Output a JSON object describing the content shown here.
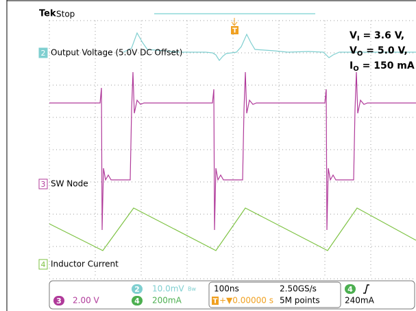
{
  "header": {
    "brand": "Tek",
    "status": "Stop",
    "trigger_marker": "T"
  },
  "annotations": [
    {
      "symbol": "V",
      "subscript": "I",
      "text": " = 3.6 V,"
    },
    {
      "symbol": "V",
      "subscript": "O",
      "text": " = 5.0 V,"
    },
    {
      "symbol": "I",
      "subscript": "O",
      "text": " = 150 mA"
    }
  ],
  "channels": [
    {
      "number": "2",
      "label": "Output Voltage (5.0V DC Offset)"
    },
    {
      "number": "3",
      "label": "SW Node"
    },
    {
      "number": "4",
      "label": "Inductor Current"
    }
  ],
  "status_bar": {
    "ch2": {
      "number": "2",
      "scale": "10.0mV",
      "flag": "Bw"
    },
    "ch3": {
      "number": "3",
      "scale": "2.00 V"
    },
    "ch4": {
      "number": "4",
      "scale": "200mA"
    },
    "timebase": "100ns",
    "sample_rate": "2.50GS/s",
    "trigger_icon": "T",
    "trigger_position": "+▼0.00000 s",
    "record_length": "5M points",
    "trigger": {
      "source": "4",
      "level": "240mA"
    }
  }
}
